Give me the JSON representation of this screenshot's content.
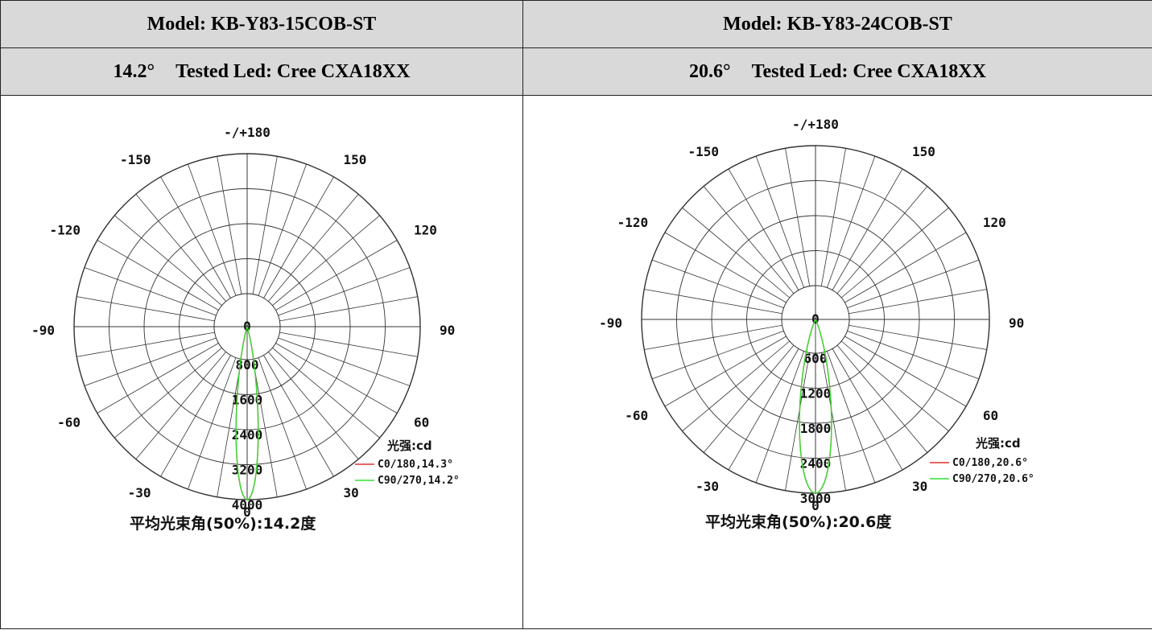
{
  "table": {
    "columns": [
      {
        "model": "Model: KB-Y83-15COB-ST",
        "angle": "14.2°",
        "tested": "Tested Led: Cree CXA18XX"
      },
      {
        "model": "Model: KB-Y83-24COB-ST",
        "angle": "20.6°",
        "tested": "Tested Led: Cree CXA18XX"
      }
    ]
  },
  "chart_data": [
    {
      "type": "polar",
      "angle_labels": [
        "-/+180",
        "-150",
        "150",
        "-120",
        "120",
        "-90",
        "90",
        "-60",
        "60",
        "-30",
        "30",
        "0"
      ],
      "radial_ticks": [
        "0",
        "800",
        "1600",
        "2400",
        "3200",
        "4000"
      ],
      "radial_max": 4000,
      "unit_label": "光强:cd",
      "beam_label": "平均光束角(50%):14.2度",
      "grid": true,
      "legend_position": "bottom-right",
      "series": [
        {
          "name": "C0/180,14.3°",
          "color": "#e03030",
          "peak": 4000,
          "beam_angle_deg": 14.3
        },
        {
          "name": "C90/270,14.2°",
          "color": "#33dd33",
          "peak": 4000,
          "beam_angle_deg": 14.2
        }
      ]
    },
    {
      "type": "polar",
      "angle_labels": [
        "-/+180",
        "-150",
        "150",
        "-120",
        "120",
        "-90",
        "90",
        "-60",
        "60",
        "-30",
        "30",
        "0"
      ],
      "radial_ticks": [
        "0",
        "600",
        "1200",
        "1800",
        "2400",
        "3000"
      ],
      "radial_max": 3000,
      "unit_label": "光强:cd",
      "beam_label": "平均光束角(50%):20.6度",
      "grid": true,
      "legend_position": "bottom-right",
      "series": [
        {
          "name": "C0/180,20.6°",
          "color": "#e03030",
          "peak": 3000,
          "beam_angle_deg": 20.6
        },
        {
          "name": "C90/270,20.6°",
          "color": "#33dd33",
          "peak": 3000,
          "beam_angle_deg": 20.6
        }
      ]
    }
  ]
}
